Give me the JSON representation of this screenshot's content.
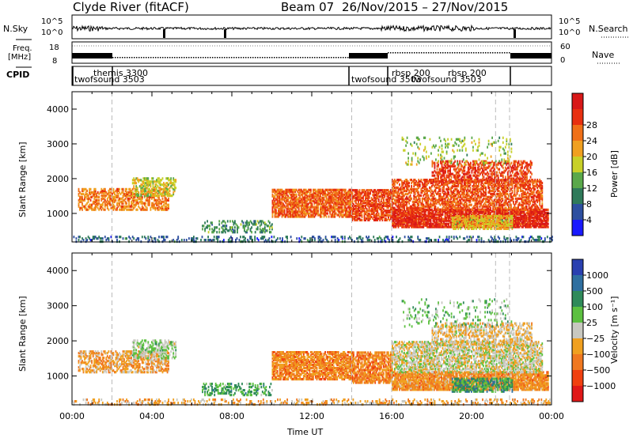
{
  "header": {
    "station": "Clyde River (fitACF)",
    "beam": "Beam 07",
    "date_range": "26/Nov/2015 – 27/Nov/2015"
  },
  "strips": {
    "nsky_label": "N.Sky",
    "nsky_ticks": [
      "10^5",
      "10^0"
    ],
    "nsearch_label": "N.Search",
    "freq_label_1": "Freq.",
    "freq_label_2": "[MHz]",
    "freq_ticks": [
      "18",
      "8"
    ],
    "nave_ticks": [
      "60",
      "0"
    ],
    "nave_label": "Nave",
    "cpid_label": "CPID",
    "cpid_entries": [
      "themis 3300",
      "twofsound 3503",
      "twofsound 3503",
      "rbsp 200",
      "rbsp 200",
      "twofsound 3503"
    ]
  },
  "chart_data": [
    {
      "type": "heatmap",
      "title": "Power",
      "ylabel": "Slant Range [km]",
      "xlabel": "Time UT",
      "xlim": [
        0,
        24
      ],
      "ylim": [
        180,
        4500
      ],
      "x_ticks": [
        "00:00",
        "04:00",
        "08:00",
        "12:00",
        "16:00",
        "20:00",
        "00:00"
      ],
      "y_ticks": [
        1000,
        2000,
        3000,
        4000
      ],
      "colorbar": {
        "label": "Power [dB]",
        "ticks": [
          "4",
          "8",
          "12",
          "16",
          "20",
          "24",
          "28"
        ],
        "colors": [
          "#1a1aff",
          "#2d4fa0",
          "#2f7a5a",
          "#5aa84a",
          "#c8d028",
          "#f0a020",
          "#f07018",
          "#e83010",
          "#d81818"
        ]
      },
      "dashed_times": [
        2.0,
        14.0,
        16.0,
        21.2,
        21.9
      ]
    },
    {
      "type": "heatmap",
      "title": "Velocity",
      "ylabel": "Slant Range [km]",
      "xlabel": "Time UT",
      "xlim": [
        0,
        24
      ],
      "ylim": [
        180,
        4500
      ],
      "x_ticks": [
        "00:00",
        "04:00",
        "08:00",
        "12:00",
        "16:00",
        "20:00",
        "00:00"
      ],
      "y_ticks": [
        1000,
        2000,
        3000,
        4000
      ],
      "colorbar": {
        "label": "Velocity [m s⁻¹]",
        "ticks": [
          "1000",
          "500",
          "100",
          "25",
          "−25",
          "−100",
          "−500",
          "−1000"
        ],
        "colors": [
          "#2a40b0",
          "#2f6fa0",
          "#2f8a5a",
          "#5cc040",
          "#c8c8c0",
          "#f0a020",
          "#f07820",
          "#f04010",
          "#e01818"
        ]
      },
      "dashed_times": [
        2.0,
        14.0,
        16.0,
        21.2,
        21.9
      ]
    }
  ]
}
